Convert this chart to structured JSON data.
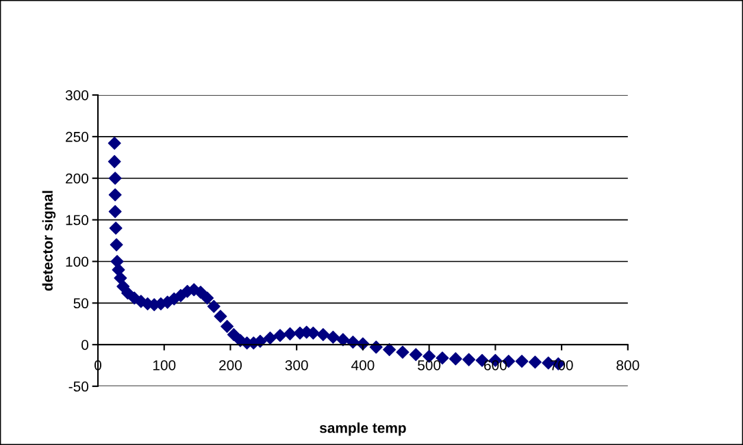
{
  "chart_data": {
    "type": "scatter",
    "xlabel": "sample temp",
    "ylabel": "detector signal",
    "xlim": [
      0,
      800
    ],
    "xticks": [
      0,
      100,
      200,
      300,
      400,
      500,
      600,
      700,
      800
    ],
    "ylim": [
      -50,
      300
    ],
    "yticks": [
      -50,
      0,
      50,
      100,
      150,
      200,
      250,
      300
    ],
    "grid": "y",
    "legend": false,
    "marker": "diamond",
    "series": [
      {
        "color": "#000080",
        "x": [
          25,
          25,
          26,
          26,
          26,
          27,
          28,
          29,
          31,
          34,
          38,
          45,
          55,
          65,
          75,
          85,
          95,
          105,
          115,
          125,
          135,
          145,
          155,
          165,
          175,
          185,
          195,
          205,
          215,
          225,
          235,
          245,
          260,
          275,
          290,
          305,
          315,
          325,
          340,
          355,
          370,
          385,
          400,
          420,
          440,
          460,
          480,
          500,
          520,
          540,
          560,
          580,
          600,
          620,
          640,
          660,
          680,
          695
        ],
        "values": [
          242,
          220,
          200,
          180,
          160,
          140,
          120,
          100,
          90,
          80,
          70,
          62,
          56,
          52,
          49,
          48,
          49,
          51,
          55,
          59,
          64,
          66,
          63,
          56,
          46,
          34,
          22,
          12,
          5,
          2,
          2,
          4,
          8,
          11,
          13,
          14,
          15,
          14,
          12,
          9,
          6,
          3,
          1,
          -3,
          -6,
          -9,
          -12,
          -14,
          -16,
          -17,
          -18,
          -19,
          -19,
          -20,
          -20,
          -21,
          -22,
          -23
        ]
      }
    ]
  }
}
